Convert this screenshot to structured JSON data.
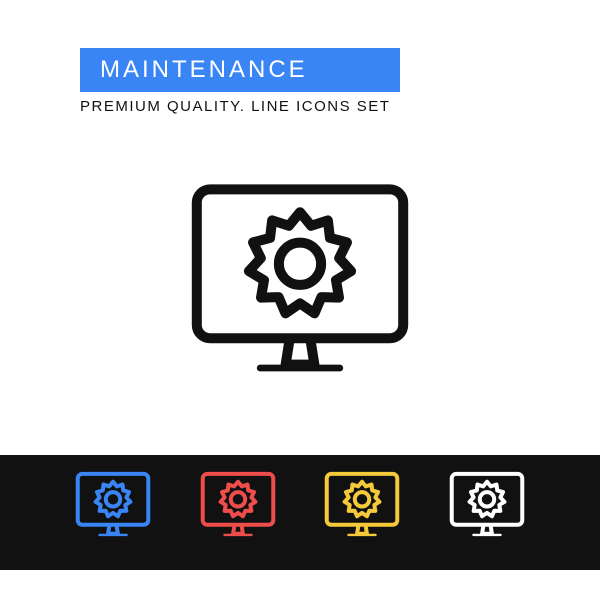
{
  "header": {
    "title": "MAINTENANCE",
    "subtitle": "PREMIUM QUALITY. LINE ICONS SET",
    "banner_bg": "#3a85f5",
    "banner_text_color": "#ffffff",
    "subtitle_color": "#111111"
  },
  "main_icon": {
    "name": "maintenance-icon",
    "size": 240,
    "stroke_color": "#111111",
    "stroke_width": 10
  },
  "color_variants": {
    "background": "#111111",
    "icon_size": 82,
    "stroke_width": 4,
    "colors": [
      "#3a85f5",
      "#ef4c4c",
      "#f5c93a",
      "#ffffff"
    ]
  }
}
